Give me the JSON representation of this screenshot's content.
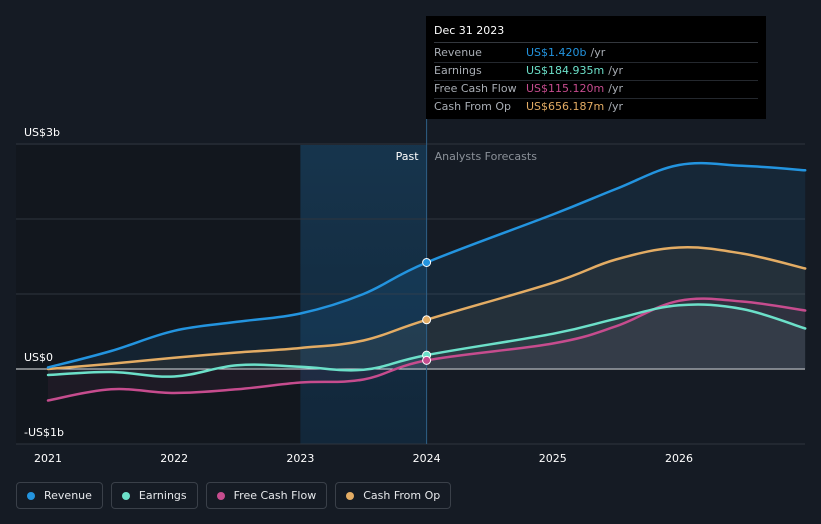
{
  "chart_data": {
    "type": "line",
    "title": "",
    "xlabel": "",
    "ylabel": "",
    "x": [
      2021.0,
      2021.5,
      2022.0,
      2022.5,
      2023.0,
      2023.5,
      2024.0,
      2025.0,
      2025.5,
      2026.0,
      2026.5,
      2027.0
    ],
    "ylim": [
      -1,
      3
    ],
    "xlim": [
      2020.75,
      2027.0
    ],
    "y_ticks": [
      {
        "value": 3,
        "label": "US$3b"
      },
      {
        "value": 0,
        "label": "US$0"
      },
      {
        "value": -1,
        "label": "-US$1b"
      }
    ],
    "x_ticks": [
      {
        "value": 2021,
        "label": "2021"
      },
      {
        "value": 2022,
        "label": "2022"
      },
      {
        "value": 2023,
        "label": "2023"
      },
      {
        "value": 2024,
        "label": "2024"
      },
      {
        "value": 2025,
        "label": "2025"
      },
      {
        "value": 2026,
        "label": "2026"
      }
    ],
    "divider_x": 2024.0,
    "highlight_range": [
      2023.0,
      2024.0
    ],
    "past_label": "Past",
    "forecast_label": "Analysts Forecasts",
    "series": [
      {
        "name": "Revenue",
        "color": "#2394df",
        "values": [
          0.02,
          0.24,
          0.51,
          0.63,
          0.74,
          1.0,
          1.42,
          2.06,
          2.4,
          2.72,
          2.71,
          2.65
        ]
      },
      {
        "name": "Earnings",
        "color": "#6ce0c9",
        "values": [
          -0.08,
          -0.04,
          -0.1,
          0.05,
          0.03,
          -0.01,
          0.185,
          0.47,
          0.67,
          0.85,
          0.8,
          0.54
        ]
      },
      {
        "name": "Free Cash Flow",
        "color": "#c64c8e",
        "values": [
          -0.42,
          -0.27,
          -0.32,
          -0.27,
          -0.18,
          -0.14,
          0.115,
          0.34,
          0.57,
          0.91,
          0.9,
          0.78
        ]
      },
      {
        "name": "Cash From Op",
        "color": "#e3ac64",
        "values": [
          0.0,
          0.07,
          0.15,
          0.22,
          0.28,
          0.38,
          0.656,
          1.15,
          1.46,
          1.62,
          1.54,
          1.34
        ]
      }
    ]
  },
  "tooltip": {
    "date": "Dec 31 2023",
    "rows": [
      {
        "label": "Revenue",
        "value": "US$1.420b",
        "unit": "/yr",
        "color": "#2394df"
      },
      {
        "label": "Earnings",
        "value": "US$184.935m",
        "unit": "/yr",
        "color": "#6ce0c9"
      },
      {
        "label": "Free Cash Flow",
        "value": "US$115.120m",
        "unit": "/yr",
        "color": "#c64c8e"
      },
      {
        "label": "Cash From Op",
        "value": "US$656.187m",
        "unit": "/yr",
        "color": "#e3ac64"
      }
    ]
  },
  "legend": [
    {
      "label": "Revenue",
      "color": "#2394df"
    },
    {
      "label": "Earnings",
      "color": "#6ce0c9"
    },
    {
      "label": "Free Cash Flow",
      "color": "#c64c8e"
    },
    {
      "label": "Cash From Op",
      "color": "#e3ac64"
    }
  ]
}
